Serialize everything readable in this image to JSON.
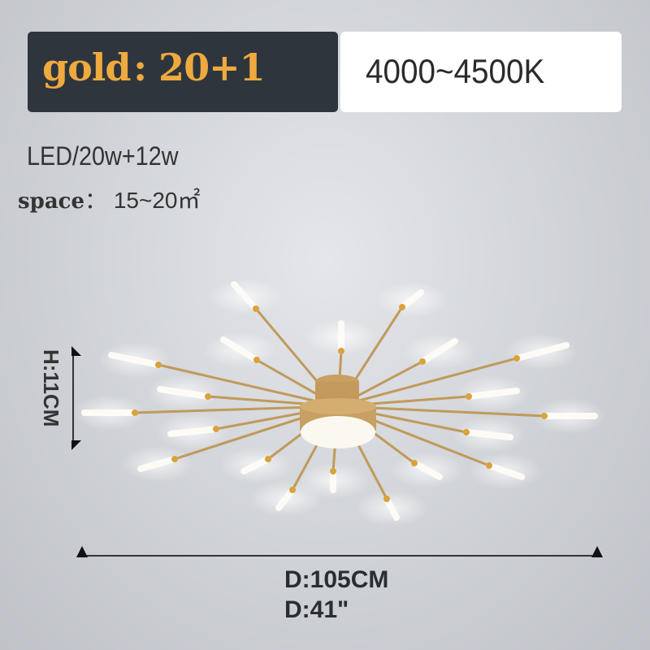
{
  "variant": {
    "label": "gold : 20+1",
    "color_temp": "4000~4500K"
  },
  "specs": {
    "power": "LED/20w+12w",
    "space_label": "space",
    "space_value": "： 15~20㎡"
  },
  "dimensions": {
    "height": "H:11CM",
    "diameter_cm": "D:105CM",
    "diameter_in": "D:41\""
  },
  "colors": {
    "gold": "#eeaa3f",
    "dark_panel": "#2f353c",
    "arm": "#c09a5a"
  }
}
